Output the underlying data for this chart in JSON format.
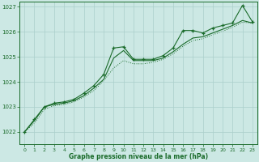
{
  "background_color": "#cce8e4",
  "grid_color": "#aacfcb",
  "line_color": "#1a6b2a",
  "xlabel": "Graphe pression niveau de la mer (hPa)",
  "xlim": [
    -0.5,
    23.5
  ],
  "ylim": [
    1021.5,
    1027.2
  ],
  "yticks": [
    1022,
    1023,
    1024,
    1025,
    1026,
    1027
  ],
  "xticks": [
    0,
    1,
    2,
    3,
    4,
    5,
    6,
    7,
    8,
    9,
    10,
    11,
    12,
    13,
    14,
    15,
    16,
    17,
    18,
    19,
    20,
    21,
    22,
    23
  ],
  "series": {
    "line1": [
      1022.0,
      1022.5,
      1023.0,
      1023.15,
      1023.2,
      1023.3,
      1023.55,
      1023.85,
      1024.3,
      1025.35,
      1025.4,
      1024.9,
      1024.9,
      1024.9,
      1025.05,
      1025.35,
      1026.05,
      1026.05,
      1025.95,
      1026.15,
      1026.25,
      1026.35,
      1027.05,
      1026.4
    ],
    "line2": [
      1022.0,
      1022.45,
      1023.0,
      1023.1,
      1023.15,
      1023.25,
      1023.45,
      1023.75,
      1024.1,
      1024.95,
      1025.25,
      1024.85,
      1024.85,
      1024.85,
      1024.95,
      1025.2,
      1025.5,
      1025.75,
      1025.8,
      1025.95,
      1026.1,
      1026.25,
      1026.45,
      1026.35
    ],
    "line3": [
      1022.0,
      1022.35,
      1022.9,
      1023.05,
      1023.1,
      1023.2,
      1023.4,
      1023.65,
      1024.05,
      1024.55,
      1024.85,
      1024.72,
      1024.72,
      1024.78,
      1024.9,
      1025.12,
      1025.42,
      1025.65,
      1025.72,
      1025.88,
      1026.02,
      1026.18,
      1026.38,
      1026.35
    ]
  }
}
